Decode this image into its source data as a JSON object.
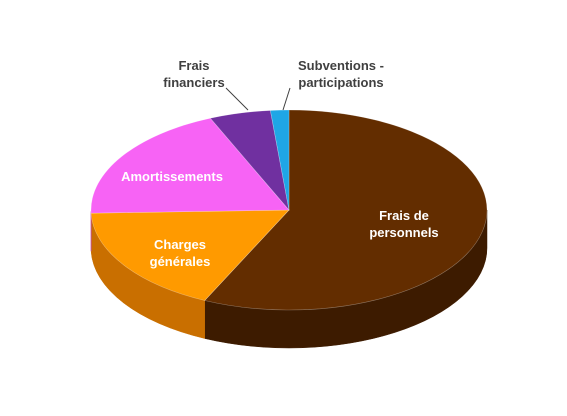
{
  "chart_data": {
    "type": "pie",
    "style": "3d",
    "title": "",
    "slices": [
      {
        "label_lines": [
          "Frais de",
          "personnels"
        ],
        "value": 57.0,
        "color": "#632d00",
        "side_color": "#3d1b00",
        "label_color": "#ffffff",
        "label_position": "inside"
      },
      {
        "label_lines": [
          "Charges",
          "générales"
        ],
        "value": 17.5,
        "color": "#ff9a00",
        "side_color": "#c96f00",
        "label_color": "#ffffff",
        "label_position": "inside"
      },
      {
        "label_lines": [
          "Amortissements"
        ],
        "value": 19.0,
        "color": "#f763f5",
        "side_color": "#c047c0",
        "label_color": "#ffffff",
        "label_position": "inside"
      },
      {
        "label_lines": [
          "Frais",
          "financiers"
        ],
        "value": 5.0,
        "color": "#7030a0",
        "side_color": "#4e1f70",
        "label_color": "#404040",
        "label_position": "outside"
      },
      {
        "label_lines": [
          "Subventions -",
          "participations"
        ],
        "value": 1.5,
        "color": "#1fa6e6",
        "side_color": "#1a7fb0",
        "label_color": "#404040",
        "label_position": "outside"
      }
    ]
  }
}
